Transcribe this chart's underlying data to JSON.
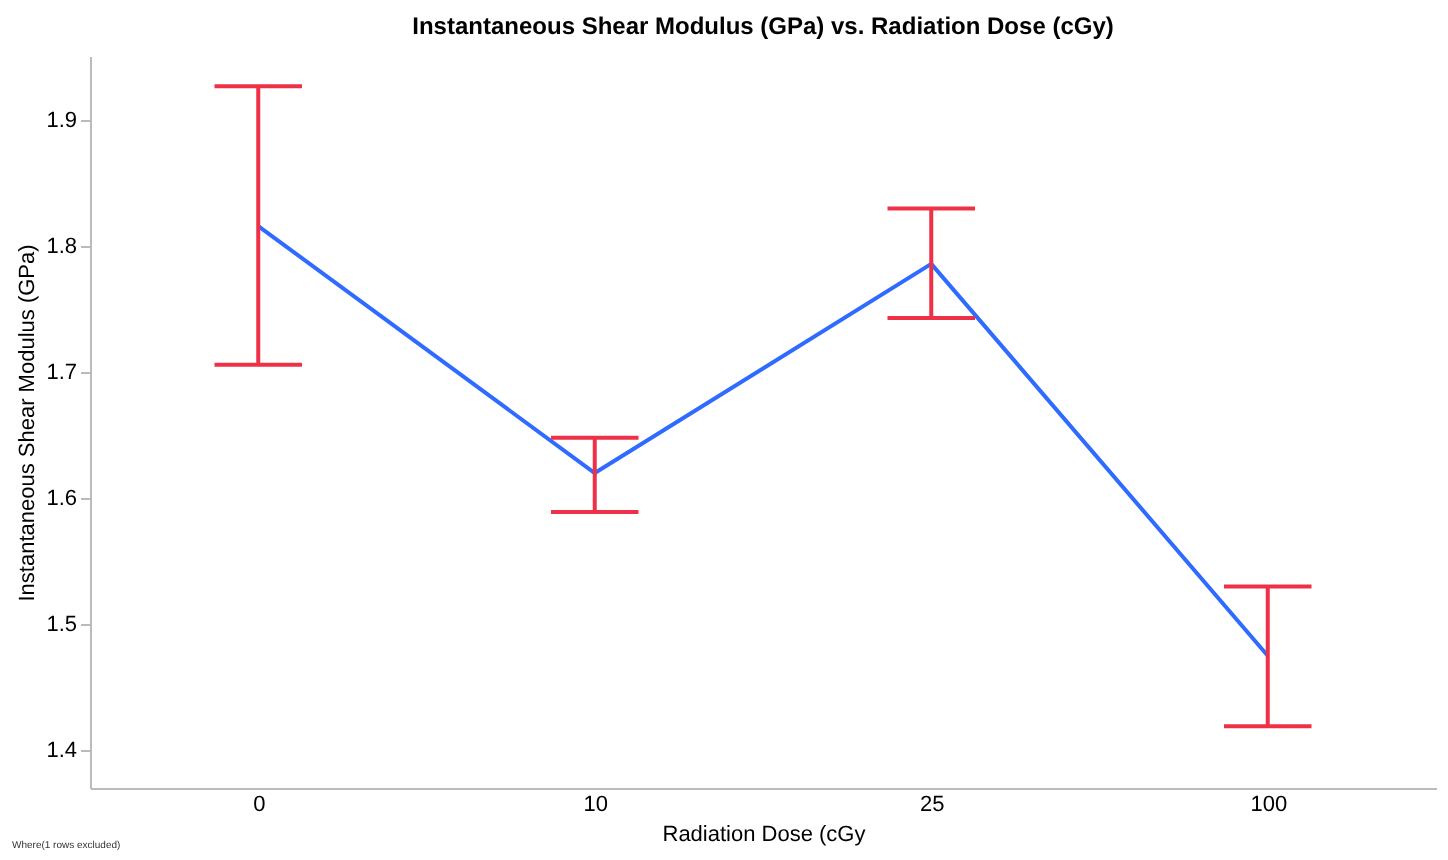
{
  "chart_data": {
    "type": "line",
    "title": "Instantaneous Shear Modulus (GPa) vs. Radiation Dose (cGy)",
    "xlabel": "Radiation Dose (cGy",
    "ylabel": "Instantaneous Shear Modulus (GPa)",
    "categories": [
      "0",
      "10",
      "25",
      "100"
    ],
    "color": "#2f6bff",
    "values": [
      1.816,
      1.62,
      1.786,
      1.475
    ],
    "errors": [
      [
        1.706,
        1.927
      ],
      [
        1.589,
        1.648
      ],
      [
        1.743,
        1.83
      ],
      [
        1.419,
        1.53
      ]
    ],
    "ylim": [
      1.37,
      1.951
    ],
    "yticks": [
      1.4,
      1.5,
      1.6,
      1.7,
      1.8,
      1.9
    ],
    "grid": false,
    "legend": false,
    "marker": "none",
    "line_style": "solid",
    "annotations": [
      "Where(1 rows excluded)"
    ]
  }
}
